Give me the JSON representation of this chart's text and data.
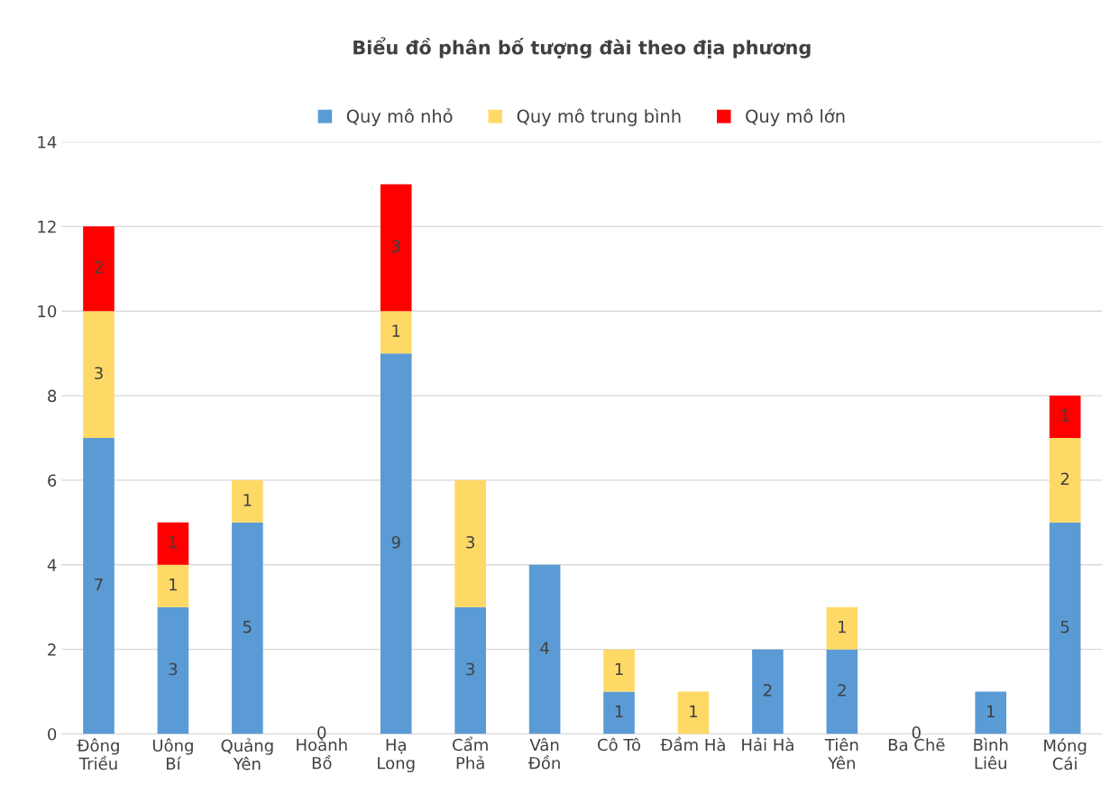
{
  "chart_data": {
    "type": "bar",
    "stacked": true,
    "title": "Biểu đồ phân bố tượng đài theo địa phương",
    "categories": [
      "Đông Triều",
      "Uông  Bí",
      "Quảng Yên",
      "Hoành Bồ",
      "Hạ Long",
      "Cẩm Phả",
      "Vân Đồn",
      "Cô Tô",
      "Đầm Hà",
      "Hải Hà",
      "Tiên Yên",
      "Ba Chẽ",
      "Bình Liêu",
      "Móng Cái"
    ],
    "series": [
      {
        "name": "Quy mô nhỏ",
        "color": "#5b9bd5",
        "values": [
          7,
          3,
          5,
          0,
          9,
          3,
          4,
          1,
          null,
          2,
          2,
          0,
          1,
          5
        ],
        "value_labels": [
          "7",
          "3",
          "5",
          "0",
          "9",
          "3",
          "4",
          "1",
          null,
          "2",
          "2",
          "0",
          "1",
          "5"
        ]
      },
      {
        "name": "Quy mô trung bình",
        "color": "#ffd966",
        "values": [
          3,
          1,
          1,
          null,
          1,
          3,
          null,
          1,
          1,
          null,
          1,
          null,
          null,
          2
        ],
        "value_labels": [
          "3",
          "1",
          "1",
          null,
          "1",
          "3",
          null,
          "1",
          "1",
          null,
          "1",
          null,
          null,
          "2"
        ]
      },
      {
        "name": "Quy mô lớn",
        "color": "#ff0000",
        "values": [
          2,
          1,
          null,
          null,
          3,
          null,
          null,
          null,
          null,
          null,
          null,
          null,
          null,
          1
        ],
        "value_labels": [
          "2",
          "1",
          null,
          null,
          "3",
          null,
          null,
          null,
          null,
          null,
          null,
          null,
          null,
          "1"
        ]
      }
    ],
    "ylim": [
      0,
      14
    ],
    "yticks": [
      0,
      2,
      4,
      6,
      8,
      10,
      12,
      14
    ],
    "grid": "y",
    "legend": "top"
  }
}
